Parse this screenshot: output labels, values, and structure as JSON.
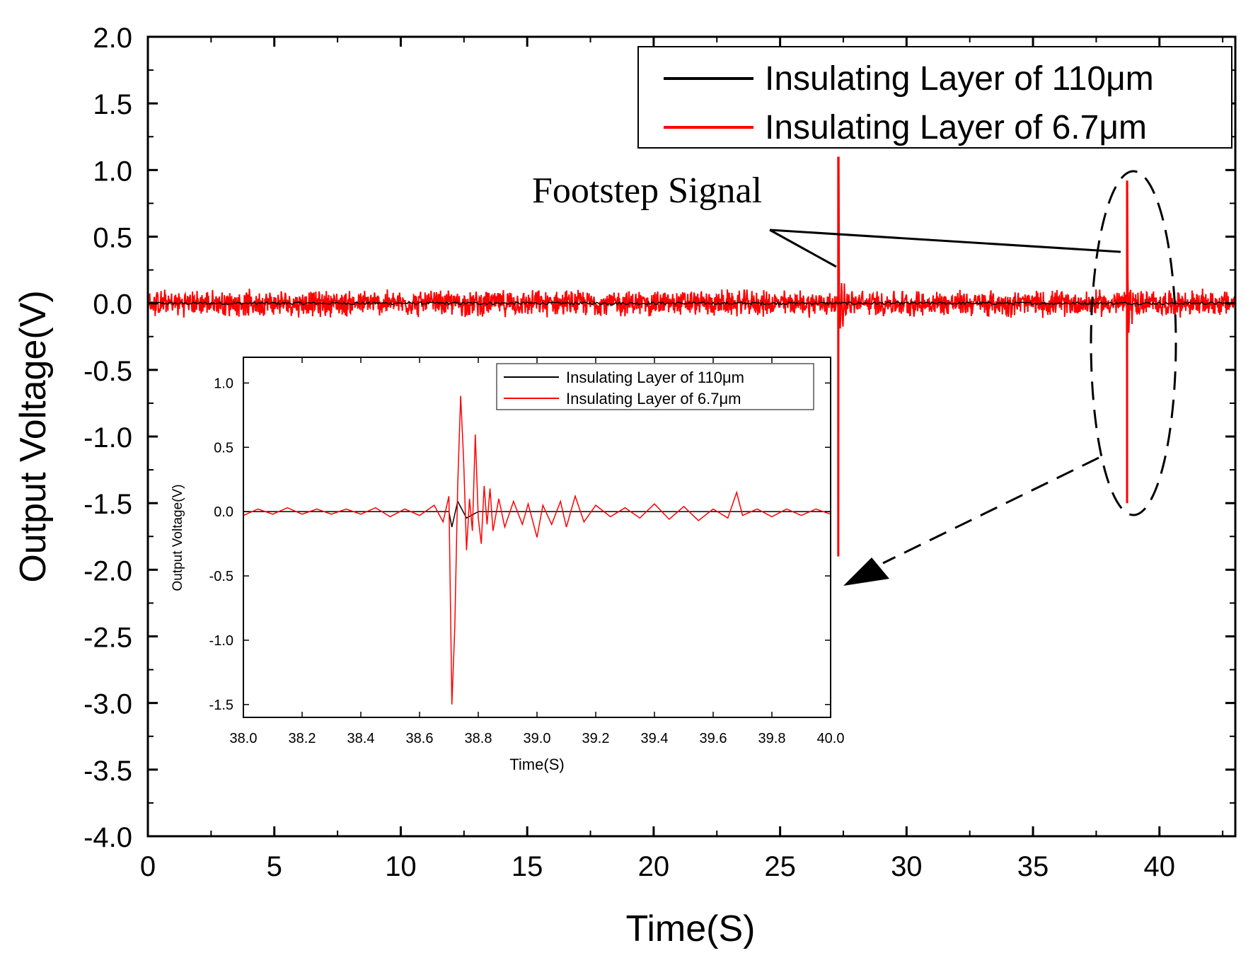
{
  "colors": {
    "series1": "#000000",
    "series2": "#ff0000",
    "axis": "#000000",
    "background": "#ffffff"
  },
  "annotation": {
    "text": "Footstep Signal"
  },
  "chart_data": [
    {
      "id": "main",
      "type": "line",
      "title": "",
      "xlabel": "Time(S)",
      "ylabel": "Output Voltage(V)",
      "xlim": [
        0,
        43
      ],
      "ylim": [
        -4.0,
        2.0
      ],
      "xticks": [
        0,
        5,
        10,
        15,
        20,
        25,
        30,
        35,
        40
      ],
      "yticks": [
        2.0,
        1.5,
        1.0,
        0.5,
        0.0,
        -0.5,
        -1.0,
        -1.5,
        -2.0,
        -2.5,
        -3.0,
        -3.5,
        -4.0
      ],
      "xtick_labels": [
        "0",
        "5",
        "10",
        "15",
        "20",
        "25",
        "30",
        "35",
        "40"
      ],
      "ytick_labels": [
        "2.0",
        "1.5",
        "1.0",
        "0.5",
        "0.0",
        "-0.5",
        "-1.0",
        "-1.5",
        "-2.0",
        "-2.5",
        "-3.0",
        "-3.5",
        "-4.0"
      ],
      "legend": {
        "position": "top-right",
        "entries": [
          "Insulating Layer of 110μm",
          "Insulating Layer of 6.7μm"
        ]
      },
      "series": [
        {
          "name": "Insulating Layer of 110μm",
          "color": "#000000",
          "baseline": 0.0,
          "noise_amplitude": 0.01
        },
        {
          "name": "Insulating Layer of 6.7μm",
          "color": "#ff0000",
          "baseline": 0.0,
          "noise_amplitude": 0.08,
          "spikes": [
            {
              "t": 27.3,
              "max": 1.1,
              "min": -1.9
            },
            {
              "t": 38.72,
              "max": 0.92,
              "min": -1.5
            }
          ]
        }
      ]
    },
    {
      "id": "inset",
      "type": "line",
      "title": "",
      "xlabel": "Time(S)",
      "ylabel": "Output Voltage(V)",
      "xlim": [
        38.0,
        40.0
      ],
      "ylim": [
        -1.6,
        1.2
      ],
      "xticks": [
        38.0,
        38.2,
        38.4,
        38.6,
        38.8,
        39.0,
        39.2,
        39.4,
        39.6,
        39.8,
        40.0
      ],
      "yticks": [
        1.0,
        0.5,
        0.0,
        -0.5,
        -1.0,
        -1.5
      ],
      "xtick_labels": [
        "38.0",
        "38.2",
        "38.4",
        "38.6",
        "38.8",
        "39.0",
        "39.2",
        "39.4",
        "39.6",
        "39.8",
        "40.0"
      ],
      "ytick_labels": [
        "1.0",
        "0.5",
        "0.0",
        "-0.5",
        "-1.0",
        "-1.5"
      ],
      "legend": {
        "position": "top-right",
        "entries": [
          "Insulating Layer of 110μm",
          "Insulating Layer of 6.7μm"
        ]
      },
      "series": [
        {
          "name": "Insulating Layer of 110μm",
          "color": "#000000",
          "points": [
            [
              38.0,
              0.0
            ],
            [
              38.7,
              0.0
            ],
            [
              38.71,
              -0.12
            ],
            [
              38.73,
              0.08
            ],
            [
              38.76,
              -0.05
            ],
            [
              38.8,
              0.0
            ],
            [
              40.0,
              0.0
            ]
          ]
        },
        {
          "name": "Insulating Layer of 6.7μm",
          "color": "#ff0000",
          "points": [
            [
              38.0,
              -0.03
            ],
            [
              38.05,
              0.02
            ],
            [
              38.1,
              -0.02
            ],
            [
              38.15,
              0.03
            ],
            [
              38.2,
              -0.02
            ],
            [
              38.25,
              0.02
            ],
            [
              38.3,
              -0.02
            ],
            [
              38.35,
              0.02
            ],
            [
              38.4,
              -0.02
            ],
            [
              38.45,
              0.03
            ],
            [
              38.5,
              -0.04
            ],
            [
              38.55,
              0.02
            ],
            [
              38.6,
              -0.03
            ],
            [
              38.65,
              0.05
            ],
            [
              38.68,
              -0.08
            ],
            [
              38.7,
              0.12
            ],
            [
              38.71,
              -1.5
            ],
            [
              38.72,
              -0.9
            ],
            [
              38.73,
              0.2
            ],
            [
              38.74,
              0.9
            ],
            [
              38.75,
              0.4
            ],
            [
              38.76,
              -0.3
            ],
            [
              38.77,
              0.1
            ],
            [
              38.78,
              -0.15
            ],
            [
              38.79,
              0.6
            ],
            [
              38.8,
              -0.05
            ],
            [
              38.81,
              -0.25
            ],
            [
              38.82,
              0.2
            ],
            [
              38.83,
              -0.1
            ],
            [
              38.84,
              0.18
            ],
            [
              38.85,
              -0.15
            ],
            [
              38.87,
              0.1
            ],
            [
              38.89,
              -0.12
            ],
            [
              38.92,
              0.08
            ],
            [
              38.95,
              -0.1
            ],
            [
              38.97,
              0.06
            ],
            [
              39.0,
              -0.2
            ],
            [
              39.02,
              0.05
            ],
            [
              39.05,
              -0.1
            ],
            [
              39.08,
              0.08
            ],
            [
              39.1,
              -0.12
            ],
            [
              39.13,
              0.12
            ],
            [
              39.16,
              -0.08
            ],
            [
              39.2,
              0.05
            ],
            [
              39.25,
              -0.04
            ],
            [
              39.3,
              0.03
            ],
            [
              39.35,
              -0.05
            ],
            [
              39.4,
              0.06
            ],
            [
              39.45,
              -0.06
            ],
            [
              39.5,
              0.04
            ],
            [
              39.55,
              -0.07
            ],
            [
              39.6,
              0.02
            ],
            [
              39.65,
              -0.05
            ],
            [
              39.68,
              0.15
            ],
            [
              39.7,
              -0.03
            ],
            [
              39.75,
              0.02
            ],
            [
              39.8,
              -0.04
            ],
            [
              39.85,
              0.02
            ],
            [
              39.9,
              -0.03
            ],
            [
              39.95,
              0.02
            ],
            [
              40.0,
              -0.02
            ]
          ]
        }
      ]
    }
  ]
}
